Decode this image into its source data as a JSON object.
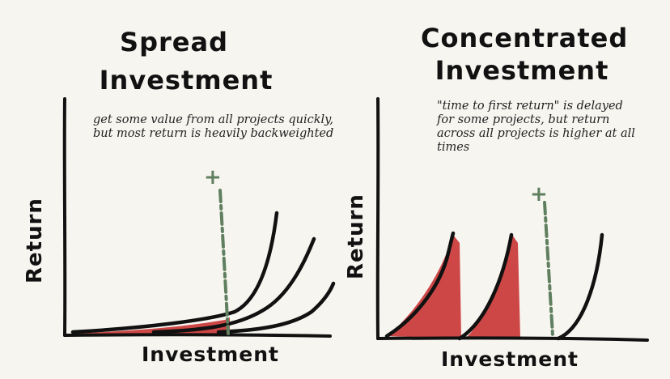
{
  "left_panel": {
    "title_line1": "Spread",
    "title_line2": "Investment",
    "note": "get some value from all projects quickly, but most return is heavily backweighted",
    "x_label": "Investment",
    "y_label": "Return",
    "marker": "+"
  },
  "right_panel": {
    "title_line1": "Concentrated",
    "title_line2": "Investment",
    "note": "\"time to first return\" is delayed for some projects, but return across all projects is higher at all times",
    "x_label": "Investment",
    "y_label": "Return",
    "marker": "+"
  },
  "colors": {
    "ink": "#111111",
    "fill_red": "#c62828",
    "dashed_green": "#5f7f5f",
    "background": "#f7f5f0"
  }
}
